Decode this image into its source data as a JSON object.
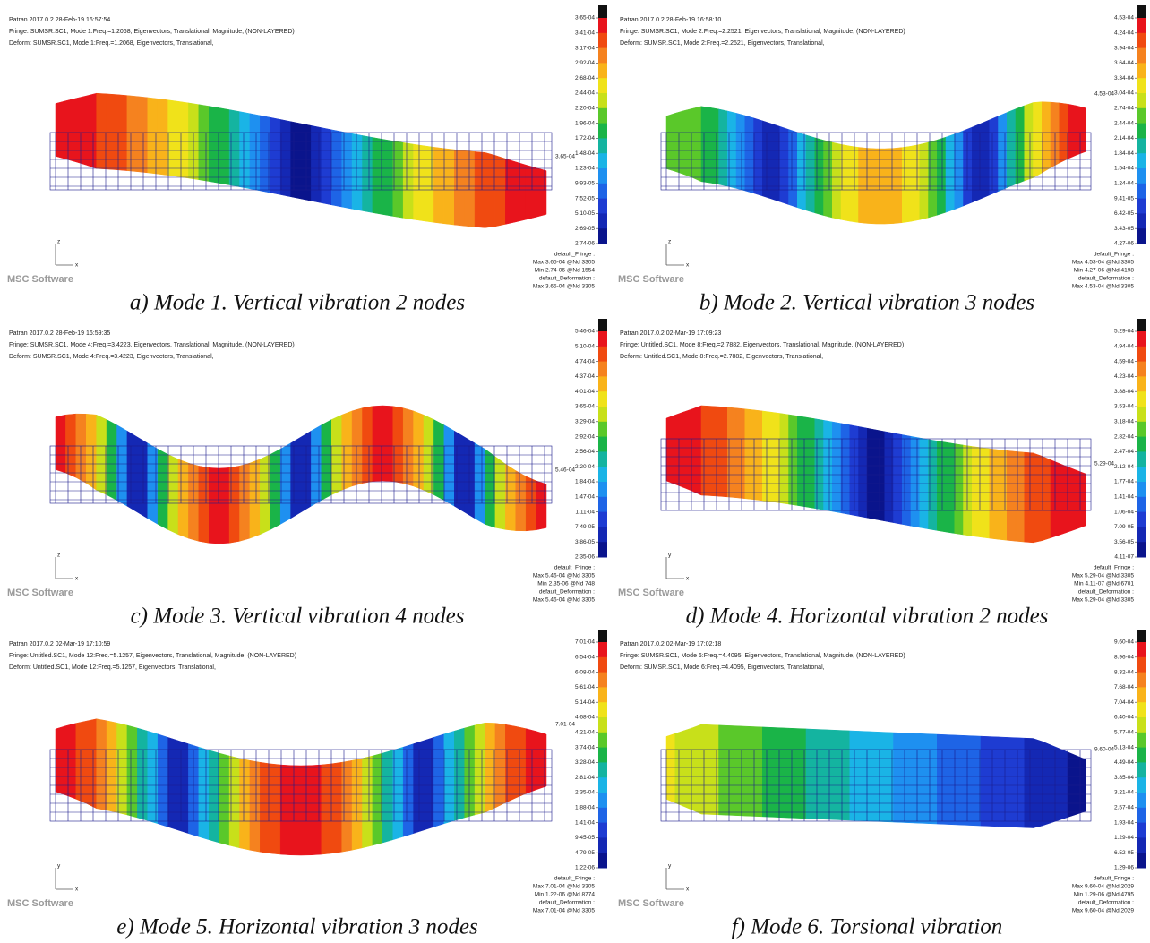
{
  "logo_text": "MSC Software",
  "panels": [
    {
      "header": [
        "Patran 2017.0.2 28-Feb-19 16:57:54",
        "Fringe: SUMSR.SC1, Mode 1:Freq.=1.2068, Eigenvectors, Translational, Magnitude, (NON-LAYERED)",
        "Deform: SUMSR.SC1, Mode 1:Freq.=1.2068, Eigenvectors, Translational,"
      ],
      "legend": [
        "3.65-04",
        "3.41-04",
        "3.17-04",
        "2.92-04",
        "2.68-04",
        "2.44-04",
        "2.20-04",
        "1.96-04",
        "1.72-04",
        "1.48-04",
        "1.23-04",
        "9.93-05",
        "7.52-05",
        "5.10-05",
        "2.69-05",
        "2.74-06"
      ],
      "footer": [
        "default_Fringe :",
        "Max 3.65-04 @Nd 3305",
        "Min 2.74-06 @Nd 1554",
        "default_Deformation :",
        "Max 3.65-04 @Nd 3305"
      ],
      "marker": "3.65-04",
      "axes": [
        "z",
        "x"
      ],
      "caption": "a) Mode 1. Vertical vibration 2 nodes"
    },
    {
      "header": [
        "Patran 2017.0.2 28-Feb-19 16:58:10",
        "Fringe: SUMSR.SC1, Mode 2:Freq.=2.2521, Eigenvectors, Translational, Magnitude, (NON-LAYERED)",
        "Deform: SUMSR.SC1, Mode 2:Freq.=2.2521, Eigenvectors, Translational,"
      ],
      "legend": [
        "4.53-04",
        "4.24-04",
        "3.94-04",
        "3.64-04",
        "3.34-04",
        "3.04-04",
        "2.74-04",
        "2.44-04",
        "2.14-04",
        "1.84-04",
        "1.54-04",
        "1.24-04",
        "9.41-05",
        "6.42-05",
        "3.43-05",
        "4.27-06"
      ],
      "footer": [
        "default_Fringe :",
        "Max 4.53-04 @Nd 3305",
        "Min 4.27-06 @Nd 4198",
        "default_Deformation :",
        "Max 4.53-04 @Nd 3305"
      ],
      "marker": "4.53-04",
      "axes": [
        "z",
        "x"
      ],
      "caption": "b) Mode 2. Vertical vibration 3 nodes"
    },
    {
      "header": [
        "Patran 2017.0.2 28-Feb-19 16:59:35",
        "Fringe: SUMSR.SC1, Mode 4:Freq.=3.4223, Eigenvectors, Translational, Magnitude, (NON-LAYERED)",
        "Deform: SUMSR.SC1, Mode 4:Freq.=3.4223, Eigenvectors, Translational,"
      ],
      "legend": [
        "5.46-04",
        "5.10-04",
        "4.74-04",
        "4.37-04",
        "4.01-04",
        "3.65-04",
        "3.29-04",
        "2.92-04",
        "2.56-04",
        "2.20-04",
        "1.84-04",
        "1.47-04",
        "1.11-04",
        "7.49-05",
        "3.86-05",
        "2.35-06"
      ],
      "footer": [
        "default_Fringe :",
        "Max 5.46-04 @Nd 3305",
        "Min 2.35-06 @Nd 748",
        "default_Deformation :",
        "Max 5.46-04 @Nd 3305"
      ],
      "marker": "5.46-04",
      "axes": [
        "z",
        "x"
      ],
      "caption": "c) Mode 3. Vertical vibration 4 nodes"
    },
    {
      "header": [
        "Patran 2017.0.2 02-Mar-19 17:09:23",
        "Fringe: Untitled.SC1, Mode 8:Freq.=2.7882, Eigenvectors, Translational, Magnitude, (NON-LAYERED)",
        "Deform: Untitled.SC1, Mode 8:Freq.=2.7882, Eigenvectors, Translational,"
      ],
      "legend": [
        "5.29-04",
        "4.94-04",
        "4.59-04",
        "4.23-04",
        "3.88-04",
        "3.53-04",
        "3.18-04",
        "2.82-04",
        "2.47-04",
        "2.12-04",
        "1.77-04",
        "1.41-04",
        "1.06-04",
        "7.09-05",
        "3.56-05",
        "4.11-07"
      ],
      "footer": [
        "default_Fringe :",
        "Max 5.29-04 @Nd 3305",
        "Min 4.11-07 @Nd 6701",
        "default_Deformation :",
        "Max 5.29-04 @Nd 3305"
      ],
      "marker": "5.29-04",
      "axes": [
        "y",
        "x"
      ],
      "caption": "d) Mode 4. Horizontal vibration 2 nodes"
    },
    {
      "header": [
        "Patran 2017.0.2 02-Mar-19 17:10:59",
        "Fringe: Untitled.SC1, Mode 12:Freq.=5.1257, Eigenvectors, Translational, Magnitude, (NON-LAYERED)",
        "Deform: Untitled.SC1, Mode 12:Freq.=5.1257, Eigenvectors, Translational,"
      ],
      "legend": [
        "7.01-04",
        "6.54-04",
        "6.08-04",
        "5.61-04",
        "5.14-04",
        "4.68-04",
        "4.21-04",
        "3.74-04",
        "3.28-04",
        "2.81-04",
        "2.35-04",
        "1.88-04",
        "1.41-04",
        "9.45-05",
        "4.79-05",
        "1.22-06"
      ],
      "footer": [
        "default_Fringe :",
        "Max 7.01-04 @Nd 3305",
        "Min 1.22-06 @Nd 8774",
        "default_Deformation :",
        "Max 7.01-04 @Nd 3305"
      ],
      "marker": "7.01-04",
      "axes": [
        "y",
        "x"
      ],
      "caption": "e) Mode 5. Horizontal vibration 3 nodes"
    },
    {
      "header": [
        "Patran 2017.0.2 02-Mar-19 17:02:18",
        "Fringe: SUMSR.SC1, Mode 6:Freq.=4.4095, Eigenvectors, Translational, Magnitude, (NON-LAYERED)",
        "Deform: SUMSR.SC1, Mode 6:Freq.=4.4095, Eigenvectors, Translational,"
      ],
      "legend": [
        "9.60-04",
        "8.96-04",
        "8.32-04",
        "7.68-04",
        "7.04-04",
        "6.40-04",
        "5.77-04",
        "5.13-04",
        "4.49-04",
        "3.85-04",
        "3.21-04",
        "2.57-04",
        "1.93-04",
        "1.29-04",
        "6.52-05",
        "1.29-06"
      ],
      "footer": [
        "default_Fringe :",
        "Max 9.60-04 @Nd 2029",
        "Min 1.29-06 @Nd 4795",
        "default_Deformation :",
        "Max 9.60-04 @Nd 2029"
      ],
      "marker": "9.60-04",
      "axes": [
        "y",
        "x"
      ],
      "caption": "f) Mode 6. Torsional vibration"
    }
  ]
}
